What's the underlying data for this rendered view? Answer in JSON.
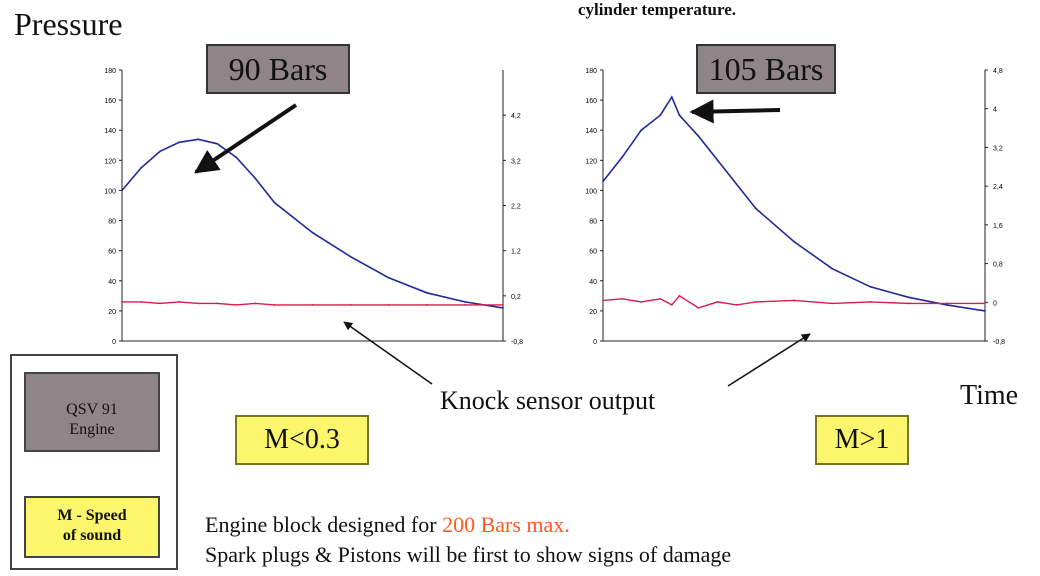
{
  "heading": "Pressure",
  "caption": "cylinder temperature.",
  "callout_left": "90 Bars",
  "callout_right": "105 Bars",
  "knock_label": "Knock sensor output",
  "time_label": "Time",
  "m_left": "M<0.3",
  "m_right": "M>1",
  "legend": {
    "engine": [
      "QSV 91",
      "Engine"
    ],
    "speed": [
      "M - Speed",
      "of sound"
    ]
  },
  "note": {
    "line1_prefix": "Engine block designed for ",
    "line1_highlight": "200 Bars max.",
    "line2": "Spark plugs & Pistons will be first to show signs of damage"
  },
  "colors": {
    "pressure": "#1f2a9a",
    "knock": "#d81b4b",
    "callout_bg": "#8f8589",
    "mbox_bg": "#fbf66b",
    "highlight": "#ff5a1f"
  },
  "chart_data": [
    {
      "type": "line",
      "left_ticks": [
        0,
        20,
        40,
        60,
        80,
        100,
        120,
        140,
        160,
        180
      ],
      "right_ticks": [
        "-0,8",
        "0,2",
        "1,2",
        "2,2",
        "3,2",
        "4,2"
      ],
      "ylim": [
        0,
        180
      ],
      "right_ylim": [
        -0.8,
        5.2
      ],
      "x": [
        0,
        5,
        10,
        15,
        20,
        25,
        30,
        35,
        40,
        50,
        60,
        70,
        80,
        90,
        100
      ],
      "series": [
        {
          "values": [
            100,
            115,
            126,
            132,
            134,
            131,
            122,
            108,
            92,
            72,
            56,
            42,
            32,
            26,
            22
          ]
        },
        {
          "values": [
            26,
            26,
            25,
            26,
            25,
            25,
            24,
            25,
            24,
            24,
            24,
            24,
            24,
            24,
            24
          ]
        }
      ]
    },
    {
      "type": "line",
      "left_ticks": [
        0,
        20,
        40,
        60,
        80,
        100,
        120,
        140,
        160,
        180
      ],
      "right_ticks": [
        "-0,8",
        "0",
        "0,8",
        "1,6",
        "2,4",
        "3,2",
        "4",
        "4,8"
      ],
      "ylim": [
        0,
        180
      ],
      "right_ylim": [
        -0.8,
        4.8
      ],
      "x": [
        0,
        5,
        10,
        15,
        18,
        20,
        25,
        30,
        35,
        40,
        50,
        60,
        70,
        80,
        90,
        100
      ],
      "series": [
        {
          "values": [
            106,
            122,
            140,
            150,
            162,
            150,
            136,
            120,
            104,
            88,
            66,
            48,
            36,
            29,
            24,
            20
          ]
        },
        {
          "values": [
            27,
            28,
            26,
            28,
            24,
            30,
            22,
            26,
            24,
            26,
            27,
            25,
            26,
            25,
            25,
            25
          ]
        }
      ]
    }
  ]
}
